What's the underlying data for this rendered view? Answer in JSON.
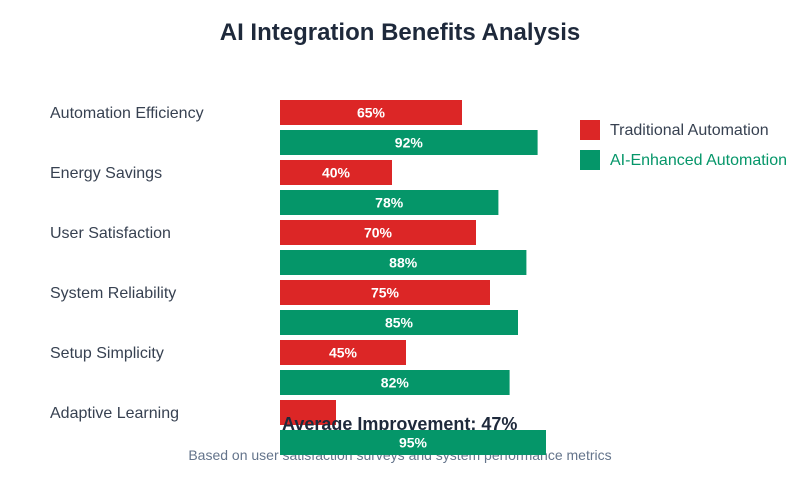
{
  "chart_data": {
    "type": "bar",
    "orientation": "horizontal",
    "title": "AI Integration Benefits Analysis",
    "xlabel": "",
    "ylabel": "",
    "xlim": [
      0,
      100
    ],
    "grid": false,
    "legend_position": "right",
    "categories": [
      "Automation Efficiency",
      "Energy Savings",
      "User Satisfaction",
      "System Reliability",
      "Setup Simplicity",
      "Adaptive Learning"
    ],
    "series": [
      {
        "name": "Traditional Automation",
        "color": "#dc2626",
        "values": [
          65,
          40,
          70,
          75,
          45,
          20
        ],
        "labels": [
          "65%",
          "40%",
          "70%",
          "75%",
          "45%",
          ""
        ]
      },
      {
        "name": "AI-Enhanced Automation",
        "color": "#059669",
        "values": [
          92,
          78,
          88,
          85,
          82,
          95
        ],
        "labels": [
          "92%",
          "78%",
          "88%",
          "85%",
          "82%",
          "95%"
        ]
      }
    ],
    "annotations": [
      "Average Improvement: 47%"
    ],
    "footnote": "Based on user satisfaction surveys and system performance metrics"
  },
  "legend": {
    "items": [
      {
        "label": "Traditional Automation",
        "color": "#dc2626",
        "text_color": "#374151"
      },
      {
        "label": "AI-Enhanced Automation",
        "color": "#059669",
        "text_color": "#059669"
      }
    ]
  },
  "summary": {
    "average_improvement": "Average Improvement: 47%"
  },
  "footer": {
    "text": "Based on user satisfaction surveys and system performance metrics"
  }
}
